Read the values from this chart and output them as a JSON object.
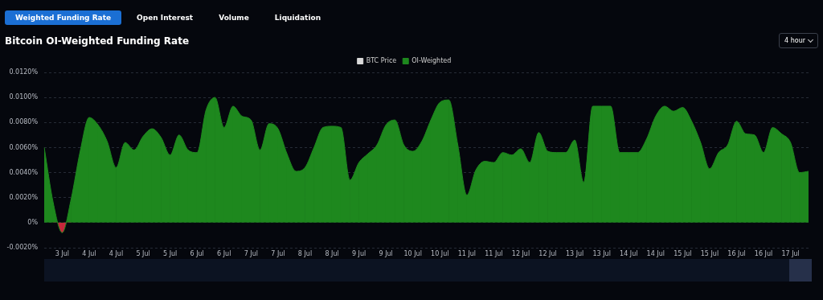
{
  "chart_data": {
    "type": "area",
    "title": "Bitcoin OI-Weighted Funding Rate",
    "annotations": [
      "Weighted Funding Rate",
      "Open Interest",
      "Volume",
      "Liquidation",
      "4 hour"
    ],
    "legend": "top",
    "grid": "y",
    "marker": "none",
    "categories": [
      null,
      null,
      "3 Jul",
      null,
      null,
      "4 Jul",
      null,
      null,
      "4 Jul",
      null,
      null,
      "5 Jul",
      null,
      null,
      "5 Jul",
      null,
      null,
      "6 Jul",
      null,
      null,
      "6 Jul",
      null,
      null,
      "7 Jul",
      null,
      null,
      "7 Jul",
      null,
      null,
      "8 Jul",
      null,
      null,
      "8 Jul",
      null,
      null,
      "9 Jul",
      null,
      null,
      "9 Jul",
      null,
      null,
      "10 Jul",
      null,
      null,
      "10 Jul",
      null,
      null,
      "11 Jul",
      null,
      null,
      "11 Jul",
      null,
      null,
      "12 Jul",
      null,
      null,
      "12 Jul",
      null,
      null,
      "13 Jul",
      null,
      null,
      "13 Jul",
      null,
      null,
      "14 Jul",
      null,
      null,
      "14 Jul",
      null,
      null,
      "15 Jul",
      null,
      null,
      "15 Jul",
      null,
      null,
      "16 Jul",
      null,
      null,
      "16 Jul",
      null,
      null,
      "17 Jul",
      null,
      null
    ],
    "ylim": [
      -0.002,
      0.012
    ],
    "yticks": [
      {
        "value": -0.002,
        "label": "-0.0020%"
      },
      {
        "value": 0,
        "label": "0%"
      },
      {
        "value": 0.002,
        "label": "0.0020%"
      },
      {
        "value": 0.004,
        "label": "0.0040%"
      },
      {
        "value": 0.006,
        "label": "0.0060%"
      },
      {
        "value": 0.008,
        "label": "0.0080%"
      },
      {
        "value": 0.01,
        "label": "0.0100%"
      },
      {
        "value": 0.012,
        "label": "0.0120%"
      }
    ],
    "series": [
      {
        "name": "BTC Price",
        "type": "line",
        "color": "#d9d9d9",
        "values": [
          null,
          null,
          null,
          null,
          null,
          null,
          null,
          null,
          null,
          null,
          null,
          null,
          null,
          null,
          null,
          null,
          null,
          null,
          null,
          null,
          null,
          null,
          null,
          null,
          null,
          null,
          null,
          null,
          null,
          null,
          null,
          null,
          null,
          null,
          null,
          null,
          null,
          null,
          null,
          null,
          null,
          null,
          null,
          null,
          null,
          null,
          null,
          null,
          null,
          null,
          null,
          null,
          null,
          null,
          null,
          null,
          null,
          null,
          null,
          null,
          null,
          null,
          null,
          null,
          null,
          null,
          null,
          null,
          null,
          null,
          null,
          null,
          null,
          null,
          null,
          null,
          null,
          null,
          null,
          null,
          null,
          null,
          null,
          null,
          null,
          null
        ]
      },
      {
        "name": "OI-Weighted",
        "color": "#1e881e",
        "values": [
          0.006,
          0.0016,
          -0.0008,
          0.0019,
          0.0057,
          0.0084,
          0.0078,
          0.0065,
          0.0044,
          0.0064,
          0.0058,
          0.0069,
          0.0075,
          0.0068,
          0.0054,
          0.007,
          0.0058,
          0.0056,
          0.009,
          0.01,
          0.0076,
          0.0093,
          0.0085,
          0.0082,
          0.0058,
          0.0079,
          0.0075,
          0.0055,
          0.0041,
          0.0044,
          0.006,
          0.0076,
          0.0077,
          0.0076,
          0.0034,
          0.0048,
          0.0055,
          0.0062,
          0.0078,
          0.0082,
          0.0062,
          0.0057,
          0.0065,
          0.0082,
          0.0096,
          0.0098,
          0.0062,
          0.0022,
          0.0042,
          0.0049,
          0.0048,
          0.0056,
          0.0054,
          0.0059,
          0.0048,
          0.0072,
          0.0057,
          0.0056,
          0.0056,
          0.0066,
          0.0032,
          0.0093,
          0.0093,
          0.0093,
          0.0056,
          0.0056,
          0.0056,
          0.0067,
          0.0085,
          0.0093,
          0.0089,
          0.0092,
          0.0081,
          0.0064,
          0.0043,
          0.0056,
          0.0062,
          0.0081,
          0.0071,
          0.007,
          0.0056,
          0.0076,
          0.0071,
          0.0064,
          0.004,
          0.0041
        ],
        "colors": [
          "#1e881e",
          "#1e881e",
          "#c8283c",
          "#1e881e",
          "#1e881e",
          "#1e881e",
          "#1e881e",
          "#1e881e",
          "#1e881e",
          "#1e881e",
          "#1e881e",
          "#1e881e",
          "#1e881e",
          "#1e881e",
          "#1e881e",
          "#1e881e",
          "#1e881e",
          "#1e881e",
          "#1e881e",
          "#1e881e",
          "#1e881e",
          "#1e881e",
          "#1e881e",
          "#1e881e",
          "#1e881e",
          "#1e881e",
          "#1e881e",
          "#1e881e",
          "#1e881e",
          "#1e881e",
          "#1e881e",
          "#1e881e",
          "#1e881e",
          "#1e881e",
          "#1e881e",
          "#1e881e",
          "#1e881e",
          "#1e881e",
          "#1e881e",
          "#1e881e",
          "#1e881e",
          "#1e881e",
          "#1e881e",
          "#1e881e",
          "#1e881e",
          "#1e881e",
          "#1e881e",
          "#1e881e",
          "#1e881e",
          "#1e881e",
          "#1e881e",
          "#1e881e",
          "#1e881e",
          "#1e881e",
          "#1e881e",
          "#1e881e",
          "#1e881e",
          "#1e881e",
          "#1e881e",
          "#1e881e",
          "#1e881e",
          "#1e881e",
          "#1e881e",
          "#1e881e",
          "#1e881e",
          "#1e881e",
          "#1e881e",
          "#1e881e",
          "#1e881e",
          "#1e881e",
          "#1e881e",
          "#1e881e",
          "#1e881e",
          "#1e881e",
          "#1e881e",
          "#1e881e",
          "#1e881e",
          "#1e881e",
          "#1e881e",
          "#1e881e",
          "#1e881e",
          "#1e881e",
          "#1e881e",
          "#1e881e",
          "#1e881e",
          "#1e881e"
        ]
      }
    ]
  }
}
